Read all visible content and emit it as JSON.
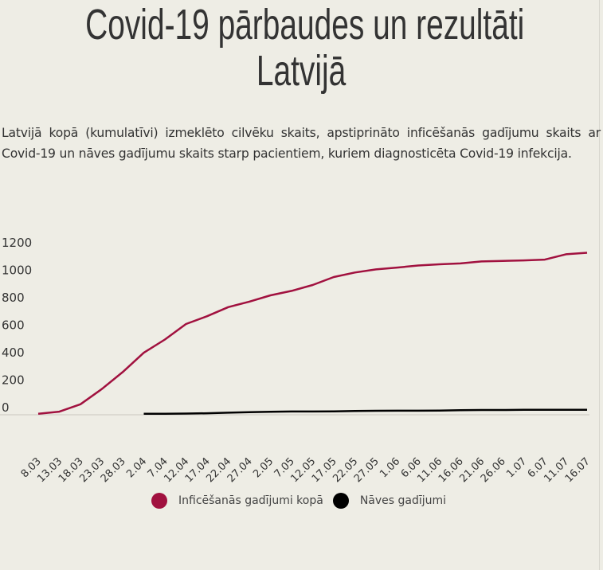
{
  "title_line1": "Covid-19 pārbaudes un rezultāti",
  "title_line2": "Latvijā",
  "description": "Latvijā kopā (kumulatīvi) izmeklēto cilvēku skaits, apstiprināto inficēšanās gadījumu skaits ar Covid-19 un nāves gadījumu skaits starp pacientiem, kuriem diagnosticēta Covid-19 infekcija.",
  "chart_data": {
    "type": "line",
    "title": "",
    "xlabel": "",
    "ylabel": "",
    "ylim": [
      0,
      1200
    ],
    "y_ticks": [
      0,
      200,
      400,
      600,
      800,
      1000,
      1200
    ],
    "grid": false,
    "legend_position": "bottom",
    "categories": [
      "8.03",
      "13.03",
      "18.03",
      "23.03",
      "28.03",
      "2.04",
      "7.04",
      "12.04",
      "17.04",
      "22.04",
      "27.04",
      "2.05",
      "7.05",
      "12.05",
      "17.05",
      "22.05",
      "27.05",
      "1.06",
      "6.06",
      "11.06",
      "16.06",
      "21.06",
      "26.06",
      "1.07",
      "6.07",
      "11.07",
      "16.07"
    ],
    "series": [
      {
        "name": "Inficēšanās gadījumi kopā",
        "color": "#a1113f",
        "values": [
          1,
          17,
          71,
          180,
          305,
          446,
          542,
          655,
          712,
          778,
          818,
          864,
          896,
          939,
          997,
          1030,
          1053,
          1066,
          1081,
          1090,
          1096,
          1111,
          1115,
          1118,
          1124,
          1163,
          1174
        ]
      },
      {
        "name": "Nāves gadījumi",
        "color": "#000000",
        "values": [
          null,
          null,
          null,
          null,
          null,
          1,
          1,
          3,
          5,
          9,
          13,
          16,
          18,
          18,
          19,
          22,
          23,
          24,
          24,
          25,
          28,
          29,
          29,
          30,
          30,
          30,
          31
        ]
      }
    ]
  }
}
